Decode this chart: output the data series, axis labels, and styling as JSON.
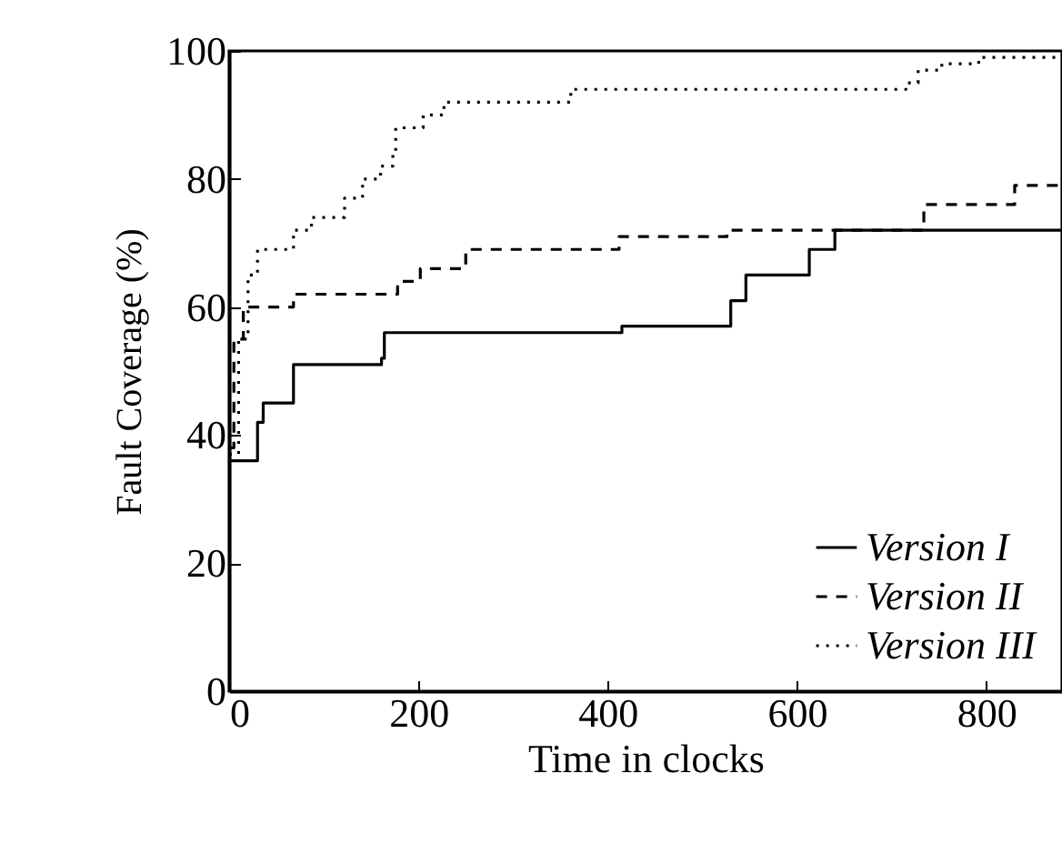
{
  "chart_data": {
    "type": "step",
    "xlabel": "Time in clocks",
    "ylabel": "Fault Coverage (%)",
    "xlim": [
      0,
      880
    ],
    "xticks": [
      0,
      200,
      400,
      600,
      800
    ],
    "ylim": [
      0,
      100
    ],
    "yticks": [
      0,
      20,
      40,
      60,
      80,
      100
    ],
    "grid": false,
    "legend": "bottom right",
    "marker": "none",
    "series": [
      {
        "name": "Version I",
        "color": "#000000",
        "line_style": "solid",
        "x": [
          0,
          0,
          30,
          36,
          68,
          144,
          161,
          164,
          396,
          415,
          530,
          546,
          613,
          640,
          880
        ],
        "values": [
          0,
          36,
          42,
          45,
          51,
          51,
          52,
          56,
          56,
          57,
          61,
          65,
          69,
          72,
          72
        ]
      },
      {
        "name": "Version II",
        "color": "#000000",
        "line_style": "dashed",
        "x": [
          0,
          5,
          15,
          68,
          178,
          202,
          250,
          412,
          526,
          734,
          830,
          880
        ],
        "values": [
          38,
          55,
          60,
          62,
          64,
          66,
          69,
          71,
          72,
          76,
          79,
          79
        ]
      },
      {
        "name": "Version III",
        "color": "#000000",
        "line_style": "dotted",
        "x": [
          0,
          10,
          20,
          30,
          68,
          87,
          122,
          141,
          160,
          173,
          176,
          205,
          227,
          361,
          715,
          728,
          753,
          792,
          880
        ],
        "values": [
          37,
          55,
          65,
          69,
          72,
          74,
          77,
          80,
          82,
          84,
          88,
          90,
          92,
          94,
          95,
          97,
          98,
          99,
          99
        ]
      }
    ]
  }
}
